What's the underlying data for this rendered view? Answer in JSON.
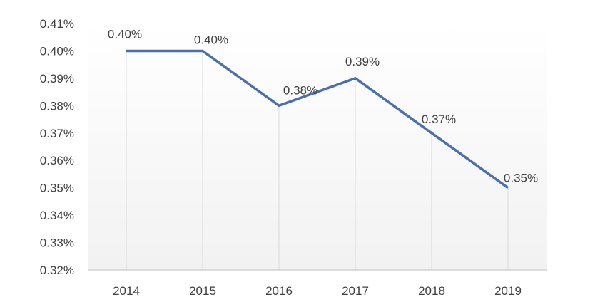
{
  "chart_data": {
    "type": "line",
    "categories": [
      "2014",
      "2015",
      "2016",
      "2017",
      "2018",
      "2019"
    ],
    "series": [
      {
        "values": [
          0.4,
          0.4,
          0.38,
          0.39,
          0.37,
          0.35
        ],
        "data_labels": [
          "0.40%",
          "0.40%",
          "0.38%",
          "0.39%",
          "0.37%",
          "0.35%"
        ],
        "color": "#4a6fae"
      }
    ],
    "y_ticks": [
      0.32,
      0.33,
      0.34,
      0.35,
      0.36,
      0.37,
      0.38,
      0.39,
      0.4,
      0.41
    ],
    "y_tick_labels": [
      "0.32%",
      "0.33%",
      "0.34%",
      "0.35%",
      "0.36%",
      "0.37%",
      "0.38%",
      "0.39%",
      "0.40%",
      "0.41%"
    ],
    "ylim": [
      0.32,
      0.41
    ],
    "unit": "%",
    "grid": "vertical drop lines at categories",
    "legend": "none",
    "background_gradient": [
      "#ffffff",
      "#f2f2f2"
    ],
    "axis_color": "#bfbfbf",
    "dropline_color": "#d9d9d9",
    "label_color": "#404040"
  }
}
